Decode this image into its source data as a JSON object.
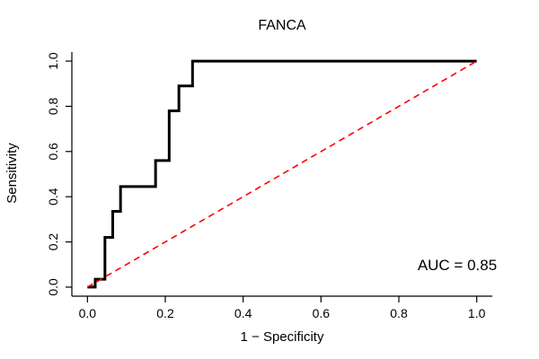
{
  "chart_data": {
    "type": "line",
    "title": "FANCA",
    "xlabel": "1 − Specificity",
    "ylabel": "Sensitivity",
    "xlim": [
      0,
      1
    ],
    "ylim": [
      0,
      1
    ],
    "grid": false,
    "legend": "none",
    "x_tick_values": [
      0,
      0.2,
      0.4,
      0.6,
      0.8,
      1.0
    ],
    "x_tick_labels": [
      "0.0",
      "0.2",
      "0.4",
      "0.6",
      "0.8",
      "1.0"
    ],
    "y_tick_values": [
      0,
      0.2,
      0.4,
      0.6,
      0.8,
      1.0
    ],
    "y_tick_labels": [
      "0.0",
      "0.2",
      "0.4",
      "0.6",
      "0.8",
      "1.0"
    ],
    "series": [
      {
        "name": "ROC curve",
        "color": "#000000",
        "style": "solid",
        "width": 3,
        "points": [
          [
            0,
            0
          ],
          [
            0.02,
            0
          ],
          [
            0.02,
            0.035
          ],
          [
            0.045,
            0.035
          ],
          [
            0.045,
            0.22
          ],
          [
            0.065,
            0.22
          ],
          [
            0.065,
            0.335
          ],
          [
            0.085,
            0.335
          ],
          [
            0.085,
            0.445
          ],
          [
            0.175,
            0.445
          ],
          [
            0.175,
            0.56
          ],
          [
            0.21,
            0.56
          ],
          [
            0.21,
            0.78
          ],
          [
            0.235,
            0.78
          ],
          [
            0.235,
            0.89
          ],
          [
            0.27,
            0.89
          ],
          [
            0.27,
            1
          ],
          [
            1,
            1
          ]
        ]
      },
      {
        "name": "Chance diagonal",
        "color": "#ff0000",
        "style": "dashed",
        "width": 1.6,
        "points": [
          [
            0,
            0
          ],
          [
            1,
            1
          ]
        ]
      }
    ],
    "annotation": {
      "text": "AUC = 0.85",
      "x": 0.95,
      "y": 0.075
    },
    "auc": 0.85,
    "axis_color": "#000000"
  }
}
